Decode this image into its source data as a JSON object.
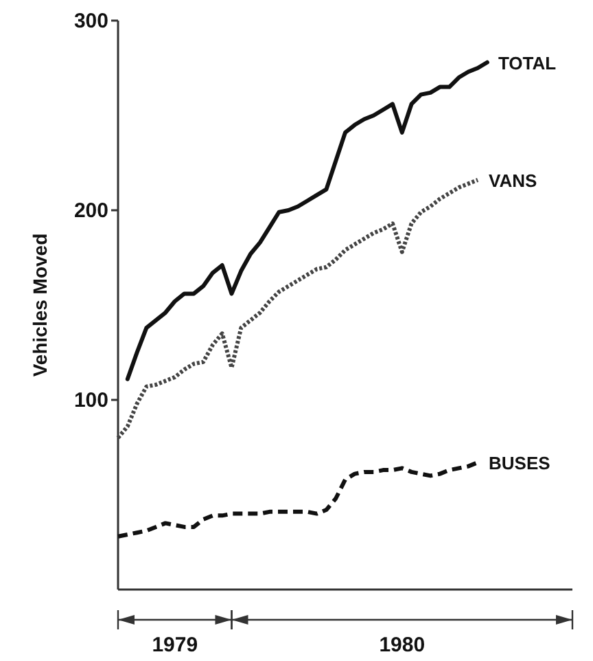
{
  "chart_data": {
    "type": "line",
    "ylabel": "Vehicles Moved",
    "categories": [
      null,
      null,
      null,
      null,
      null,
      null,
      "1979",
      null,
      null,
      null,
      null,
      null,
      null,
      null,
      null,
      null,
      null,
      null,
      null,
      null,
      null,
      null,
      null,
      null,
      null,
      null,
      null,
      null,
      null,
      null,
      "1980",
      null,
      null,
      null,
      null,
      null,
      null,
      null,
      null,
      null,
      null,
      null,
      null,
      null,
      null,
      null,
      null,
      null,
      null
    ],
    "ylim": [
      0,
      300
    ],
    "yticks": [
      100,
      200,
      300
    ],
    "grid": false,
    "legend": false,
    "marker": "none",
    "series": [
      {
        "name": "TOTAL",
        "color": "#111111",
        "line_style": "solid",
        "values": [
          null,
          111,
          125,
          138,
          142,
          146,
          152,
          156,
          156,
          160,
          167,
          171,
          156,
          168,
          177,
          183,
          191,
          199,
          200,
          202,
          205,
          208,
          211,
          226,
          241,
          245,
          248,
          250,
          253,
          256,
          241,
          256,
          261,
          262,
          265,
          265,
          270,
          273,
          275,
          278,
          null,
          null,
          null,
          null,
          null,
          null,
          null,
          null,
          null
        ]
      },
      {
        "name": "VANS",
        "color": "#444444",
        "line_style": "dotted",
        "values": [
          80,
          86,
          98,
          107,
          108,
          110,
          112,
          116,
          119,
          120,
          129,
          135,
          117,
          138,
          142,
          146,
          152,
          157,
          160,
          163,
          166,
          169,
          170,
          174,
          179,
          182,
          185,
          188,
          190,
          193,
          178,
          193,
          199,
          202,
          206,
          209,
          212,
          214,
          216,
          null,
          null,
          null,
          null,
          null,
          null,
          null,
          null,
          null,
          null
        ]
      },
      {
        "name": "BUSES",
        "color": "#111111",
        "line_style": "dashed",
        "values": [
          28,
          29,
          30,
          31,
          33,
          35,
          34,
          33,
          33,
          37,
          39,
          39,
          40,
          40,
          40,
          40,
          41,
          41,
          41,
          41,
          41,
          40,
          42,
          48,
          58,
          61,
          62,
          62,
          63,
          63,
          64,
          62,
          61,
          60,
          61,
          63,
          64,
          65,
          67,
          null,
          null,
          null,
          null,
          null,
          null,
          null,
          null,
          null,
          null
        ]
      }
    ]
  }
}
